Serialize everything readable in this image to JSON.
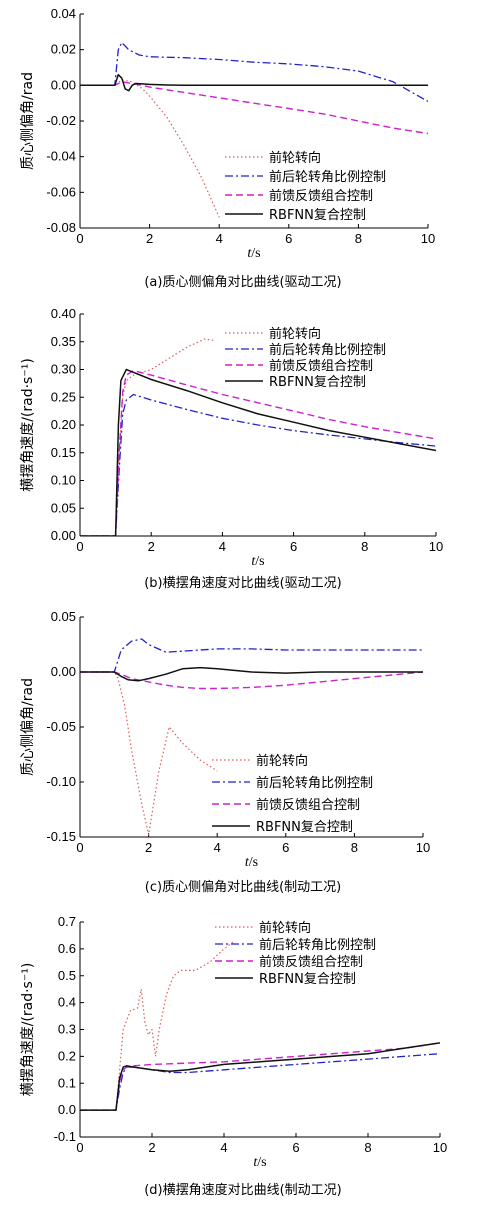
{
  "styles": [
    {
      "color": "#e05a5a",
      "dash": "1.5,2.5",
      "width": 1.2
    },
    {
      "color": "#2222cc",
      "dash": "8,3,2,3",
      "width": 1.3
    },
    {
      "color": "#cc22cc",
      "dash": "7,4",
      "width": 1.4
    },
    {
      "color": "#111111",
      "dash": "",
      "width": 1.5
    }
  ],
  "chart_data": [
    {
      "type": "line",
      "caption": "(a)质心侧偏角对比曲线(驱动工况)",
      "ylabel": "质心侧偏角/rad",
      "xlabel_italic": "t",
      "xlabel_rest": "/s",
      "xlim": [
        0,
        10
      ],
      "ylim": [
        -0.08,
        0.04
      ],
      "xticks": [
        "0",
        "2",
        "4",
        "6",
        "8",
        "10"
      ],
      "yticks": [
        "-0.08",
        "-0.06",
        "-0.04",
        "-0.02",
        "0.00",
        "0.02",
        "0.04"
      ],
      "legend_labels": [
        "前轮转向",
        "前后轮转角比例控制",
        "前馈反馈组合控制",
        "RBFNN复合控制"
      ],
      "series": [
        {
          "name": "前轮转向",
          "x": [
            0,
            1,
            1.2,
            1.5,
            1.8,
            2,
            2.5,
            3,
            3.5,
            4
          ],
          "y": [
            0,
            0,
            0.003,
            0.002,
            -0.002,
            -0.006,
            -0.018,
            -0.034,
            -0.052,
            -0.074
          ]
        },
        {
          "name": "前后轮转角比例控制",
          "x": [
            0,
            1,
            1.1,
            1.2,
            1.4,
            1.7,
            2,
            3,
            4,
            5,
            6,
            7,
            8,
            9,
            10
          ],
          "y": [
            0,
            0,
            0.02,
            0.024,
            0.02,
            0.017,
            0.016,
            0.0155,
            0.0145,
            0.013,
            0.012,
            0.0105,
            0.008,
            0.002,
            -0.009
          ]
        },
        {
          "name": "前馈反馈组合控制",
          "x": [
            0,
            1,
            1.2,
            1.5,
            1.8,
            2,
            3,
            4,
            5,
            6,
            7,
            8,
            9,
            10
          ],
          "y": [
            0,
            0,
            0.002,
            0.001,
            0,
            -0.001,
            -0.004,
            -0.007,
            -0.01,
            -0.013,
            -0.016,
            -0.02,
            -0.024,
            -0.027
          ]
        },
        {
          "name": "RBFNN复合控制",
          "x": [
            0,
            1,
            1.1,
            1.2,
            1.3,
            1.4,
            1.5,
            1.6,
            1.8,
            2,
            2.5,
            3,
            4,
            10
          ],
          "y": [
            0,
            0,
            0.006,
            0.004,
            -0.002,
            -0.003,
            0.0,
            0.001,
            0.0008,
            0.0005,
            0.0002,
            0,
            0,
            0
          ]
        }
      ]
    },
    {
      "type": "line",
      "caption": "(b)横摆角速度对比曲线(驱动工况)",
      "ylabel": "横摆角速度/(rad·s⁻¹)",
      "xlabel_italic": "t",
      "xlabel_rest": "/s",
      "xlim": [
        0,
        10
      ],
      "ylim": [
        0,
        0.4
      ],
      "xticks": [
        "0",
        "2",
        "4",
        "6",
        "8",
        "10"
      ],
      "yticks": [
        "0.00",
        "0.05",
        "0.10",
        "0.15",
        "0.20",
        "0.25",
        "0.30",
        "0.35",
        "0.40"
      ],
      "legend_labels": [
        "前轮转向",
        "前后轮转角比例控制",
        "前馈反馈组合控制",
        "RBFNN复合控制"
      ],
      "series": [
        {
          "name": "前轮转向",
          "x": [
            0,
            1,
            1.1,
            1.2,
            1.3,
            1.5,
            2,
            2.5,
            3,
            3.5,
            3.8
          ],
          "y": [
            0,
            0,
            0.15,
            0.25,
            0.28,
            0.29,
            0.3,
            0.32,
            0.34,
            0.355,
            0.352
          ]
        },
        {
          "name": "前后轮转角比例控制",
          "x": [
            0,
            1,
            1.1,
            1.2,
            1.3,
            1.5,
            2,
            3,
            4,
            5,
            6,
            7,
            8,
            9,
            10
          ],
          "y": [
            0,
            0,
            0.12,
            0.22,
            0.245,
            0.255,
            0.245,
            0.228,
            0.212,
            0.2,
            0.19,
            0.182,
            0.175,
            0.168,
            0.162
          ]
        },
        {
          "name": "前馈反馈组合控制",
          "x": [
            0,
            1,
            1.1,
            1.2,
            1.3,
            1.5,
            2,
            3,
            4,
            5,
            6,
            7,
            8,
            9,
            10
          ],
          "y": [
            0,
            0,
            0.15,
            0.26,
            0.29,
            0.298,
            0.29,
            0.272,
            0.255,
            0.24,
            0.225,
            0.21,
            0.197,
            0.186,
            0.175
          ]
        },
        {
          "name": "RBFNN复合控制",
          "x": [
            0,
            1,
            1.08,
            1.15,
            1.3,
            1.5,
            2,
            3,
            4,
            5,
            6,
            7,
            8,
            9,
            10
          ],
          "y": [
            0,
            0,
            0.2,
            0.28,
            0.3,
            0.295,
            0.282,
            0.262,
            0.24,
            0.22,
            0.205,
            0.19,
            0.178,
            0.166,
            0.154
          ]
        }
      ]
    },
    {
      "type": "line",
      "caption": "(c)质心侧偏角对比曲线(制动工况)",
      "ylabel": "质心侧偏角/rad",
      "xlabel_italic": "t",
      "xlabel_rest": "/s",
      "xlim": [
        0,
        10
      ],
      "ylim": [
        -0.15,
        0.05
      ],
      "xticks": [
        "0",
        "2",
        "4",
        "6",
        "8",
        "10"
      ],
      "yticks": [
        "-0.15",
        "-0.10",
        "-0.05",
        "0.00",
        "0.05"
      ],
      "legend_labels": [
        "前轮转向",
        "前后轮转角比例控制",
        "前馈反馈组合控制",
        "RBFNN复合控制"
      ],
      "series": [
        {
          "name": "前轮转向",
          "x": [
            0,
            1,
            1.1,
            1.3,
            1.5,
            1.8,
            2,
            2.3,
            2.6,
            3,
            3.5,
            4
          ],
          "y": [
            0,
            0,
            -0.005,
            -0.03,
            -0.07,
            -0.12,
            -0.148,
            -0.09,
            -0.05,
            -0.065,
            -0.08,
            -0.09
          ]
        },
        {
          "name": "前后轮转角比例控制",
          "x": [
            0,
            1,
            1.2,
            1.5,
            1.8,
            2,
            2.5,
            3,
            4,
            5,
            6,
            7,
            8,
            9,
            10
          ],
          "y": [
            0,
            0,
            0.02,
            0.028,
            0.03,
            0.025,
            0.018,
            0.019,
            0.021,
            0.021,
            0.02,
            0.02,
            0.02,
            0.02,
            0.02
          ]
        },
        {
          "name": "前馈反馈组合控制",
          "x": [
            0,
            1,
            1.2,
            1.5,
            2,
            2.5,
            3,
            3.5,
            4,
            5,
            6,
            7,
            8,
            9,
            10
          ],
          "y": [
            0,
            0,
            -0.002,
            -0.006,
            -0.009,
            -0.012,
            -0.014,
            -0.015,
            -0.015,
            -0.014,
            -0.012,
            -0.009,
            -0.006,
            -0.003,
            0
          ]
        },
        {
          "name": "RBFNN复合控制",
          "x": [
            0,
            1,
            1.2,
            1.4,
            1.7,
            2,
            2.5,
            3,
            3.5,
            4,
            5,
            6,
            7,
            8,
            10
          ],
          "y": [
            0,
            0,
            -0.004,
            -0.007,
            -0.008,
            -0.006,
            -0.002,
            0.003,
            0.004,
            0.003,
            0.0,
            -0.001,
            0,
            0,
            0
          ]
        }
      ]
    },
    {
      "type": "line",
      "caption": "(d)横摆角速度对比曲线(制动工况)",
      "ylabel": "横摆角速度/(rad·s⁻¹)",
      "xlabel_italic": "t",
      "xlabel_rest": "/s",
      "xlim": [
        0,
        10
      ],
      "ylim": [
        -0.1,
        0.7
      ],
      "xticks": [
        "0",
        "2",
        "4",
        "6",
        "8",
        "10"
      ],
      "yticks": [
        "-0.1",
        "0.0",
        "0.1",
        "0.2",
        "0.3",
        "0.4",
        "0.5",
        "0.6",
        "0.7"
      ],
      "legend_labels": [
        "前轮转向",
        "前后轮转角比例控制",
        "前馈反馈组合控制",
        "RBFNN复合控制"
      ],
      "series": [
        {
          "name": "前轮转向",
          "x": [
            0,
            1,
            1.1,
            1.2,
            1.4,
            1.6,
            1.7,
            1.8,
            1.9,
            2.0,
            2.1,
            2.2,
            2.4,
            2.6,
            2.8,
            3.2,
            3.6,
            4,
            4.3
          ],
          "y": [
            0,
            0,
            0.15,
            0.3,
            0.37,
            0.38,
            0.45,
            0.33,
            0.28,
            0.3,
            0.2,
            0.3,
            0.43,
            0.5,
            0.52,
            0.52,
            0.55,
            0.6,
            0.63
          ]
        },
        {
          "name": "前后轮转角比例控制",
          "x": [
            0,
            1,
            1.1,
            1.2,
            1.3,
            1.5,
            2,
            2.5,
            3,
            4,
            5,
            6,
            7,
            8,
            9,
            10
          ],
          "y": [
            0,
            0,
            0.08,
            0.14,
            0.16,
            0.16,
            0.15,
            0.14,
            0.14,
            0.15,
            0.16,
            0.17,
            0.18,
            0.19,
            0.2,
            0.21
          ]
        },
        {
          "name": "前馈反馈组合控制",
          "x": [
            0,
            1,
            1.1,
            1.2,
            1.3,
            1.5,
            2,
            3,
            4,
            5,
            6,
            7,
            8,
            9,
            10
          ],
          "y": [
            0,
            0,
            0.1,
            0.15,
            0.16,
            0.165,
            0.17,
            0.175,
            0.18,
            0.19,
            0.2,
            0.21,
            0.22,
            0.23,
            0.25
          ]
        },
        {
          "name": "RBFNN复合控制",
          "x": [
            0,
            1,
            1.1,
            1.2,
            1.3,
            1.5,
            2,
            2.5,
            3,
            4,
            5,
            6,
            7,
            8,
            9,
            10
          ],
          "y": [
            0,
            0,
            0.12,
            0.16,
            0.165,
            0.16,
            0.15,
            0.145,
            0.15,
            0.17,
            0.18,
            0.19,
            0.2,
            0.21,
            0.23,
            0.25
          ]
        }
      ]
    }
  ]
}
